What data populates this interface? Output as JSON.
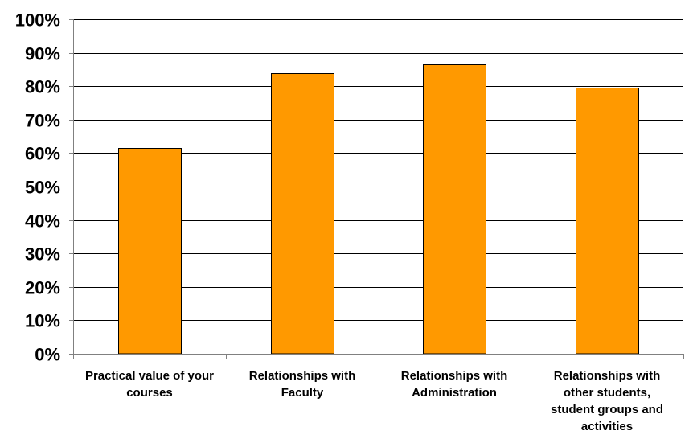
{
  "chart_data": {
    "type": "bar",
    "title": "",
    "xlabel": "",
    "ylabel": "",
    "categories": [
      "Practical value of your courses",
      "Relationships with Faculty",
      "Relationships with Administration",
      "Relationships with other students, student groups and activities"
    ],
    "category_lines": [
      [
        "Practical value of your",
        "courses"
      ],
      [
        "Relationships with",
        "Faculty"
      ],
      [
        "Relationships with",
        "Administration"
      ],
      [
        "Relationships with",
        "other students,",
        "student groups and",
        "activities"
      ]
    ],
    "values": [
      61.5,
      84,
      86.5,
      79.5
    ],
    "ylim": [
      0,
      100
    ],
    "yticks": [
      "0%",
      "10%",
      "20%",
      "30%",
      "40%",
      "50%",
      "60%",
      "70%",
      "80%",
      "90%",
      "100%"
    ],
    "grid": true,
    "legend": "none",
    "colors": {
      "bar_fill": "#ff9900",
      "bar_stroke": "#000000",
      "grid": "#000000",
      "axis": "#808080"
    }
  }
}
